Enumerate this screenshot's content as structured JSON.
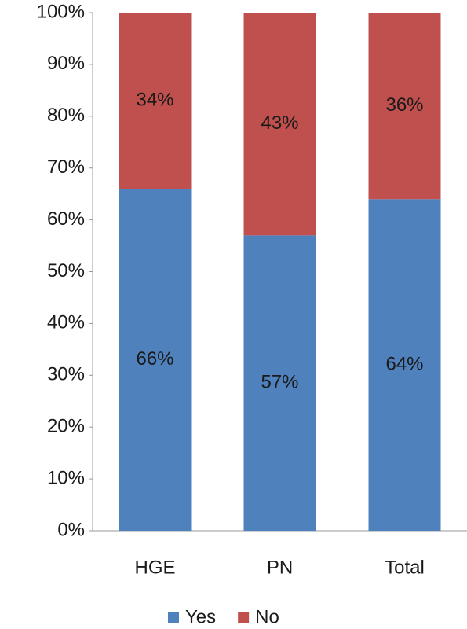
{
  "chart_data": {
    "type": "stacked-bar",
    "categories": [
      "HGE",
      "PN",
      "Total"
    ],
    "series": [
      {
        "name": "Yes",
        "color": "#4f81bd",
        "values": [
          66,
          57,
          64
        ],
        "value_labels": [
          "66%",
          "57%",
          "64%"
        ]
      },
      {
        "name": "No",
        "color": "#c0504d",
        "values": [
          34,
          43,
          36
        ],
        "value_labels": [
          "34%",
          "43%",
          "36%"
        ]
      }
    ],
    "ylim": [
      0,
      100
    ],
    "yticks": [
      {
        "value": 0,
        "label": "0%"
      },
      {
        "value": 10,
        "label": "10%"
      },
      {
        "value": 20,
        "label": "20%"
      },
      {
        "value": 30,
        "label": "30%"
      },
      {
        "value": 40,
        "label": "40%"
      },
      {
        "value": 50,
        "label": "50%"
      },
      {
        "value": 60,
        "label": "60%"
      },
      {
        "value": 70,
        "label": "70%"
      },
      {
        "value": 80,
        "label": "80%"
      },
      {
        "value": 90,
        "label": "90%"
      },
      {
        "value": 100,
        "label": "100%"
      }
    ],
    "grid": false,
    "legend": "bottom"
  }
}
